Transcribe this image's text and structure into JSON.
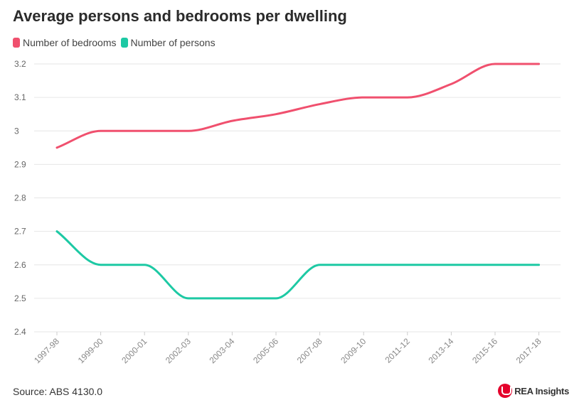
{
  "chart_data": {
    "type": "line",
    "title": "Average persons and bedrooms per dwelling",
    "xlabel": "",
    "ylabel": "",
    "categories": [
      "1997-98",
      "1999-00",
      "2000-01",
      "2002-03",
      "2003-04",
      "2005-06",
      "2007-08",
      "2009-10",
      "2011-12",
      "2013-14",
      "2015-16",
      "2017-18"
    ],
    "series": [
      {
        "name": "Number of bedrooms",
        "color": "#f0506e",
        "values": [
          2.95,
          3.0,
          3.0,
          3.0,
          3.03,
          3.05,
          3.08,
          3.1,
          3.1,
          3.14,
          3.2,
          3.2
        ]
      },
      {
        "name": "Number of persons",
        "color": "#1dc9a4",
        "values": [
          2.7,
          2.6,
          2.6,
          2.5,
          2.5,
          2.5,
          2.6,
          2.6,
          2.6,
          2.6,
          2.6,
          2.6
        ]
      }
    ],
    "ylim": [
      2.4,
      3.2
    ],
    "yticks": [
      "3.2",
      "3.1",
      "3",
      "2.9",
      "2.8",
      "2.7",
      "2.6",
      "2.5",
      "2.4"
    ],
    "grid": true,
    "legend_position": "top-left"
  },
  "footer": {
    "source": "Source: ABS 4130.0",
    "logo_text": "REA Insights"
  },
  "colors": {
    "grid": "#e6e6e6",
    "axis_text": "#666666"
  }
}
